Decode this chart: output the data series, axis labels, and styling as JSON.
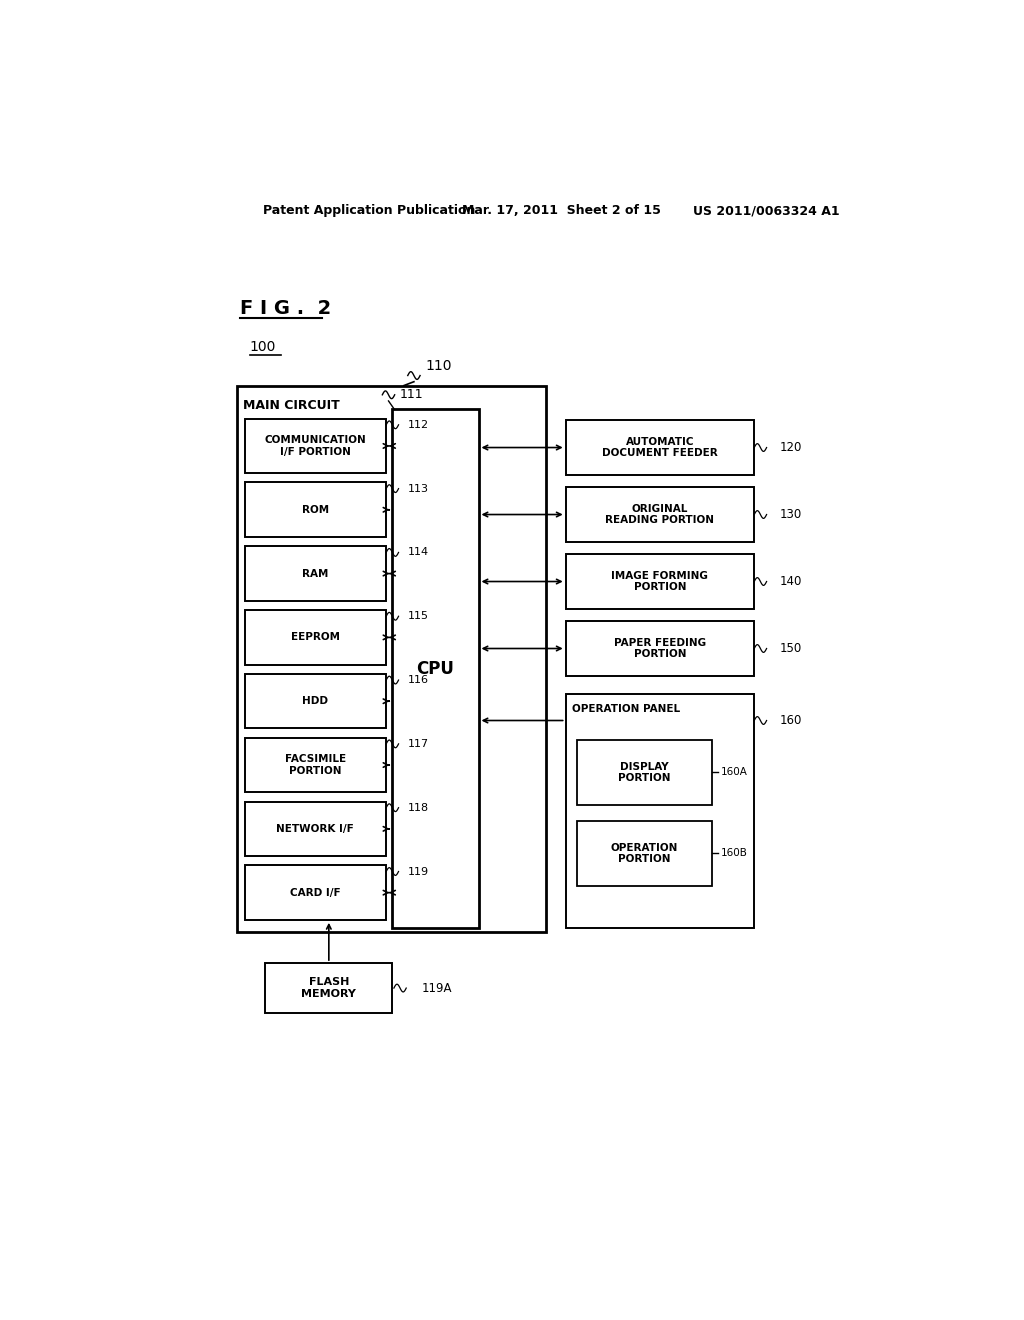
{
  "bg_color": "#ffffff",
  "header_left": "Patent Application Publication",
  "header_mid": "Mar. 17, 2011  Sheet 2 of 15",
  "header_right": "US 2011/0063324 A1",
  "fig_label": "F I G .  2",
  "label_100": "100",
  "label_110": "110",
  "label_111": "111",
  "main_circuit_label": "MAIN CIRCUIT",
  "cpu_label": "CPU",
  "left_boxes": [
    {
      "label": "COMMUNICATION\nI/F PORTION",
      "num": "112",
      "two_line": true,
      "bidir": true
    },
    {
      "label": "ROM",
      "num": "113",
      "two_line": false,
      "bidir": false
    },
    {
      "label": "RAM",
      "num": "114",
      "two_line": false,
      "bidir": true
    },
    {
      "label": "EEPROM",
      "num": "115",
      "two_line": false,
      "bidir": true
    },
    {
      "label": "HDD",
      "num": "116",
      "two_line": false,
      "bidir": false
    },
    {
      "label": "FACSIMILE\nPORTION",
      "num": "117",
      "two_line": true,
      "bidir": false
    },
    {
      "label": "NETWORK I/F",
      "num": "118",
      "two_line": false,
      "bidir": false
    },
    {
      "label": "CARD I/F",
      "num": "119",
      "two_line": false,
      "bidir": true
    }
  ],
  "right_boxes": [
    {
      "label": "AUTOMATIC\nDOCUMENT FEEDER",
      "num": "120"
    },
    {
      "label": "ORIGINAL\nREADING PORTION",
      "num": "130"
    },
    {
      "label": "IMAGE FORMING\nPORTION",
      "num": "140"
    },
    {
      "label": "PAPER FEEDING\nPORTION",
      "num": "150"
    }
  ],
  "op_panel_label": "OPERATION PANEL",
  "op_panel_num": "160",
  "disp_label": "DISPLAY\nPORTION",
  "disp_num": "160A",
  "oper_label": "OPERATION\nPORTION",
  "oper_num": "160B",
  "flash_label": "FLASH\nMEMORY",
  "flash_num": "119A"
}
